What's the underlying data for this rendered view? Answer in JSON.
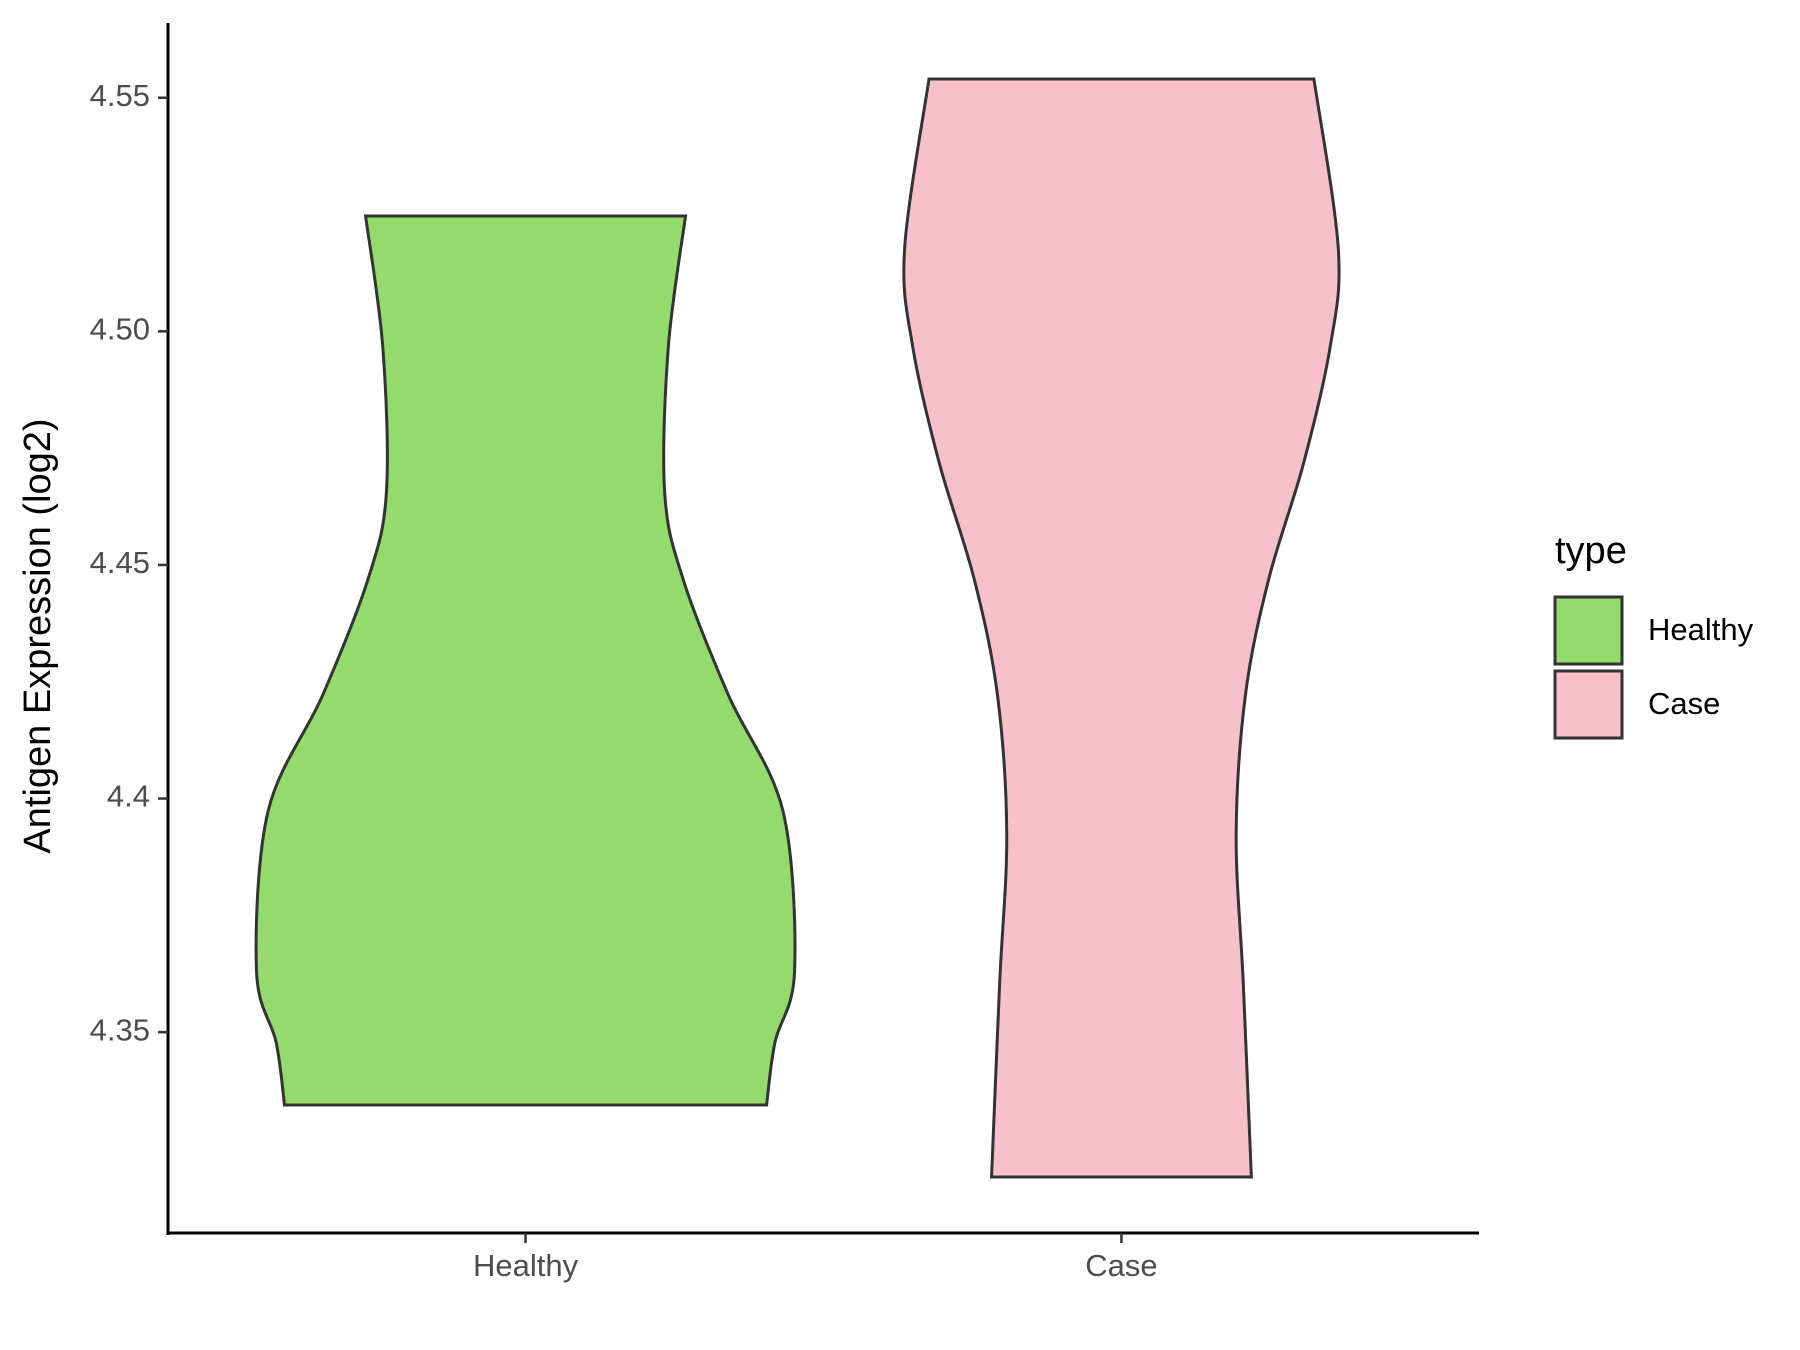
{
  "chart_data": {
    "type": "violin",
    "ylabel": "Antigen Expression (log2)",
    "categories": [
      "Healthy",
      "Case"
    ],
    "ylim": [
      4.307,
      4.566
    ],
    "yticks": [
      4.35,
      4.4,
      4.45,
      {
        "value": 4.5,
        "label": "4.50"
      },
      4.55
    ],
    "legend_title": "type",
    "legend_position": "right",
    "series": [
      {
        "name": "Healthy",
        "color": "#93DB6A",
        "y": [
          4.3344,
          4.3478,
          4.3631,
          4.3973,
          4.4221,
          4.4469,
          4.4655,
          4.4965,
          4.5247
        ],
        "widths": [
          0.809,
          0.837,
          0.903,
          0.864,
          0.681,
          0.529,
          0.467,
          0.479,
          0.537
        ]
      },
      {
        "name": "Case",
        "color": "#F8C0CB",
        "y": [
          4.319,
          4.3602,
          4.3924,
          4.4221,
          4.4469,
          4.4717,
          4.4965,
          4.5175,
          4.554
        ],
        "widths": [
          0.436,
          0.409,
          0.385,
          0.416,
          0.494,
          0.611,
          0.7,
          0.728,
          0.646
        ]
      }
    ]
  }
}
